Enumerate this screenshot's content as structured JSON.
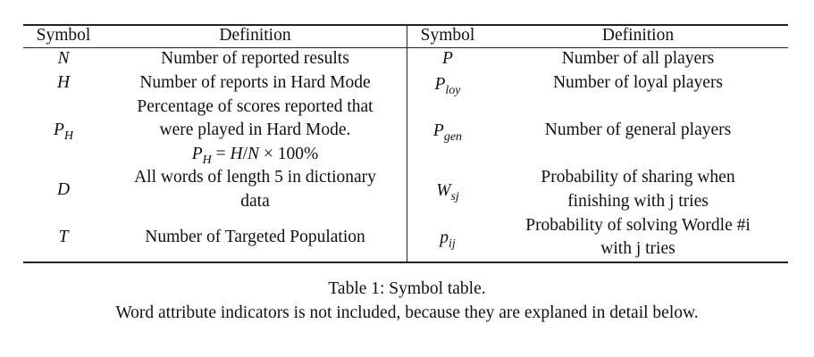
{
  "table": {
    "headers": [
      "Symbol",
      "Definition",
      "Symbol",
      "Definition"
    ],
    "left": [
      {
        "symbol": "N",
        "sub": "",
        "definition": [
          "Number of reported results"
        ]
      },
      {
        "symbol": "H",
        "sub": "",
        "definition": [
          "Number of reports in Hard Mode"
        ]
      },
      {
        "symbol": "P",
        "sub": "H",
        "definition": [
          "Percentage of scores reported that",
          "were played in Hard Mode."
        ],
        "formula": {
          "lhs": "P",
          "lhs_sub": "H",
          "eq": " = ",
          "a": "H",
          "slash": "/",
          "b": "N",
          "rest": " × 100%"
        }
      },
      {
        "symbol": "D",
        "sub": "",
        "definition": [
          "All words of length 5 in dictionary",
          "data"
        ]
      },
      {
        "symbol": "T",
        "sub": "",
        "definition": [
          "Number of Targeted Population"
        ]
      }
    ],
    "right": [
      {
        "symbol": "P",
        "sub": "",
        "definition": [
          "Number of all players"
        ]
      },
      {
        "symbol": "P",
        "sub": "loy",
        "definition": [
          "Number of loyal players"
        ]
      },
      {
        "symbol": "P",
        "sub": "gen",
        "definition": [
          "Number of general players"
        ]
      },
      {
        "symbol": "W",
        "sub": "sj",
        "definition": [
          "Probability of sharing when",
          "finishing with j tries"
        ]
      },
      {
        "symbol": "p",
        "sub": "ij",
        "definition": [
          "Probability of solving Wordle #i",
          "with j tries"
        ]
      }
    ]
  },
  "caption": {
    "line1": "Table 1: Symbol table.",
    "line2": "Word attribute indicators is not included, because they are explaned in detail below."
  }
}
